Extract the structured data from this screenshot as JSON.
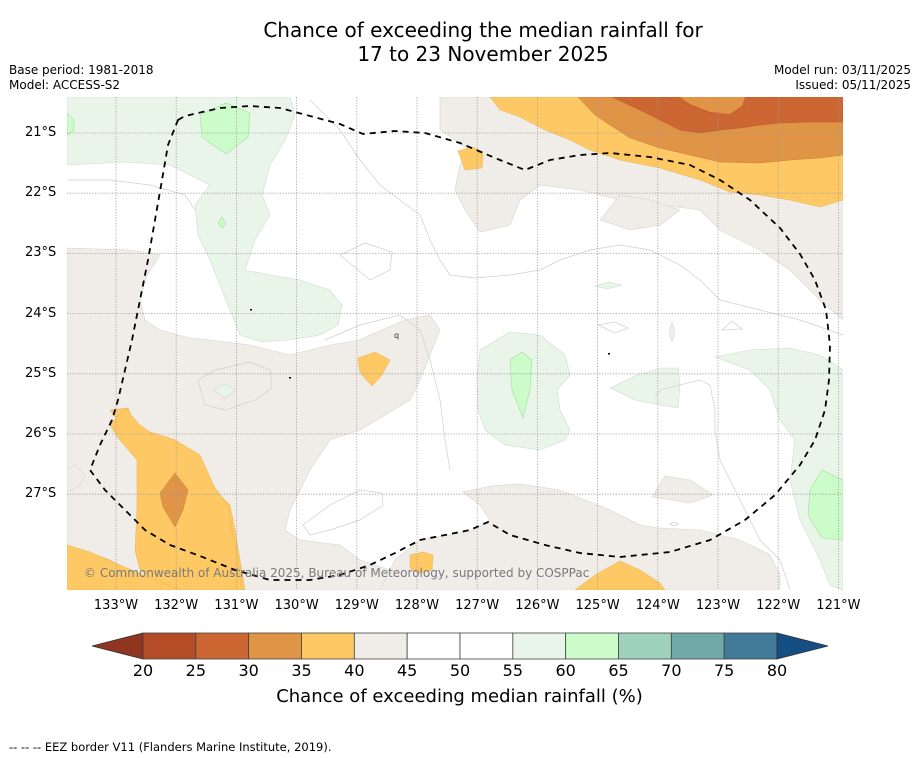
{
  "header": {
    "title_line1": "Chance of exceeding the median rainfall for",
    "title_line2": "17 to 23 November 2025",
    "base_period": "Base period: 1981-2018",
    "model": "Model: ACCESS-S2",
    "model_run": "Model run: 03/11/2025",
    "issued": "Issued: 05/11/2025"
  },
  "map": {
    "copyright": "© Commonwealth of Australia 2025, Bureau of Meteorology, supported by COSPPac",
    "stray_label": "q",
    "latitude_labels": [
      "21°S",
      "22°S",
      "23°S",
      "24°S",
      "25°S",
      "26°S",
      "27°S"
    ],
    "longitude_labels": [
      "133°W",
      "132°W",
      "131°W",
      "130°W",
      "129°W",
      "128°W",
      "127°W",
      "126°W",
      "125°W",
      "124°W",
      "123°W",
      "122°W",
      "121°W"
    ],
    "extent": {
      "lon_west": -133.8,
      "lon_east": -120.9,
      "lat_north": -20.4,
      "lat_south": -28.6
    },
    "eez_border": "dashed black line"
  },
  "colorbar": {
    "title": "Chance of exceeding median rainfall (%)",
    "ticks": [
      "20",
      "25",
      "30",
      "35",
      "40",
      "45",
      "50",
      "55",
      "60",
      "65",
      "70",
      "75",
      "80"
    ],
    "under_color": "#8f3520",
    "over_color": "#134e84",
    "bins": [
      {
        "range": "20-25",
        "color": "#b34c27"
      },
      {
        "range": "25-30",
        "color": "#cc6633"
      },
      {
        "range": "30-35",
        "color": "#e09446"
      },
      {
        "range": "35-40",
        "color": "#fec964"
      },
      {
        "range": "40-45",
        "color": "#f0ece7"
      },
      {
        "range": "45-50",
        "color": "#ffffff"
      },
      {
        "range": "50-55",
        "color": "#ffffff"
      },
      {
        "range": "55-60",
        "color": "#eaf5ea"
      },
      {
        "range": "60-65",
        "color": "#cbfcc9"
      },
      {
        "range": "65-70",
        "color": "#9fd2bc"
      },
      {
        "range": "70-75",
        "color": "#71a8a8"
      },
      {
        "range": "75-80",
        "color": "#417a98"
      }
    ]
  },
  "footer": {
    "legend_note": "--  --  -- EEZ border V11 (Flanders Marine Institute, 2019)."
  }
}
